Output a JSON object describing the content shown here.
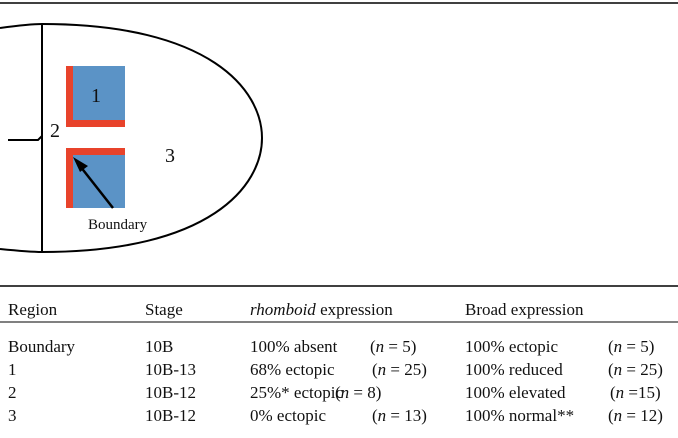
{
  "diagram": {
    "labels": {
      "region1": "1",
      "region2": "2",
      "region3": "3",
      "boundary": "Boundary"
    }
  },
  "table": {
    "header": [
      [
        "Region"
      ],
      [
        "Stage"
      ],
      [
        "rhomboid",
        " expression"
      ],
      [
        "Broad expression"
      ]
    ],
    "rows": [
      {
        "region": "Boundary",
        "stage": "10B",
        "rhomboid": {
          "text": "100% absent",
          "n": [
            "(",
            "n",
            " = 5)"
          ]
        },
        "broad": {
          "text": "100% ectopic",
          "n": [
            "(",
            "n",
            " = 5)"
          ]
        }
      },
      {
        "region": "1",
        "stage": "10B-13",
        "rhomboid": {
          "text": "68% ectopic",
          "n": [
            "(",
            "n",
            " = 25)"
          ]
        },
        "broad": {
          "text": "100% reduced",
          "n": [
            "(",
            "n",
            " = 25)"
          ]
        }
      },
      {
        "region": "2",
        "stage": "10B-12",
        "rhomboid": {
          "text": "25%* ectopic",
          "n": [
            "(",
            "n",
            " = 8)"
          ]
        },
        "broad": {
          "text": "100% elevated",
          "n": [
            "(",
            "n",
            " =15)"
          ]
        }
      },
      {
        "region": "3",
        "stage": "10B-12",
        "rhomboid": {
          "text": "0% ectopic",
          "n": [
            "(",
            "n",
            " = 13)"
          ]
        },
        "broad": {
          "text": "100% normal**",
          "n": [
            "(",
            "n",
            " = 12)"
          ]
        }
      }
    ]
  }
}
